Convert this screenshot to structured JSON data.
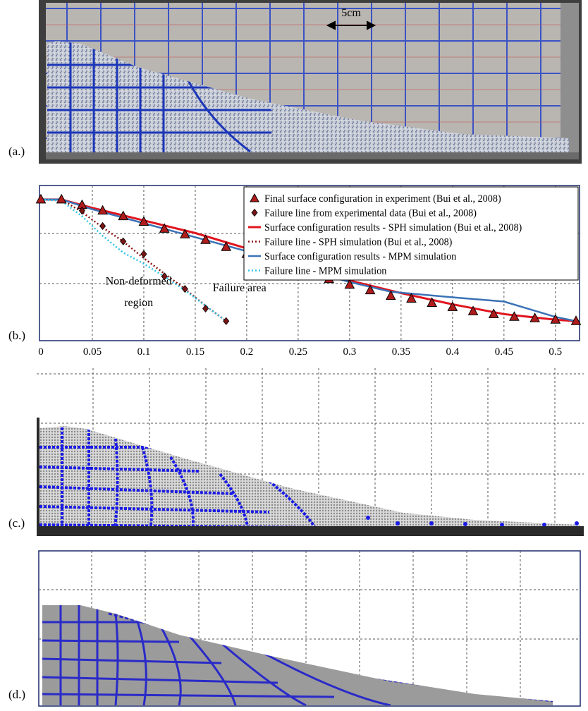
{
  "panels": {
    "a": {
      "label": "(a.)",
      "scale_label": "5cm"
    },
    "b": {
      "label": "(b.)"
    },
    "c": {
      "label": "(c.)"
    },
    "d": {
      "label": "(d.)"
    }
  },
  "colors": {
    "experiment_marker": "#b01c1c",
    "sph_line": "#e0141e",
    "mpm_line": "#3b72b5",
    "mpm_failure": "#2ec4e6",
    "particle_blue": "#1a1ae6",
    "particle_grey": "#9b9b9b",
    "frame_navy": "#1b2a6b"
  },
  "chart_data": {
    "type": "line",
    "xlim": [
      0,
      0.52
    ],
    "ylim": [
      0,
      0.11
    ],
    "xticks": [
      "0",
      "0.05",
      "0.1",
      "0.15",
      "0.2",
      "0.25",
      "0.3",
      "0.35",
      "0.4",
      "0.45",
      "0.5"
    ],
    "xtick_values": [
      0,
      0.05,
      0.1,
      0.15,
      0.2,
      0.25,
      0.3,
      0.35,
      0.4,
      0.45,
      0.5
    ],
    "grid": true,
    "legend_position": "top-right",
    "annotations": [
      {
        "text": "Non-deformed",
        "x": 0.095,
        "y": 0.0392
      },
      {
        "text": "region",
        "x": 0.095,
        "y": 0.0236
      },
      {
        "text": "Failure area",
        "x": 0.193,
        "y": 0.0344
      }
    ],
    "series": [
      {
        "name": "Final surface configuration in experiment (Bui et al., 2008)",
        "kind": "triangle",
        "x": [
          0,
          0.02,
          0.04,
          0.06,
          0.08,
          0.1,
          0.12,
          0.14,
          0.16,
          0.18,
          0.2,
          0.22,
          0.24,
          0.26,
          0.28,
          0.3,
          0.32,
          0.34,
          0.36,
          0.38,
          0.4,
          0.42,
          0.44,
          0.46,
          0.48,
          0.5,
          0.52
        ],
        "y": [
          0.1,
          0.1,
          0.096,
          0.092,
          0.088,
          0.084,
          0.079,
          0.075,
          0.071,
          0.066,
          0.061,
          0.056,
          0.051,
          0.046,
          0.043,
          0.039,
          0.035,
          0.031,
          0.029,
          0.026,
          0.023,
          0.02,
          0.018,
          0.016,
          0.015,
          0.014,
          0.013
        ]
      },
      {
        "name": "Failure line from experimental data (Bui et al., 2008)",
        "kind": "diamond",
        "x": [
          0.04,
          0.06,
          0.08,
          0.1,
          0.12,
          0.14,
          0.16,
          0.18
        ],
        "y": [
          0.092,
          0.081,
          0.07,
          0.061,
          0.045,
          0.036,
          0.022,
          0.013
        ]
      },
      {
        "name": "Surface configuration results - SPH simulation (Bui et al., 2008)",
        "kind": "solid",
        "x": [
          0,
          0.02,
          0.05,
          0.1,
          0.15,
          0.2,
          0.25,
          0.3,
          0.35,
          0.4,
          0.45,
          0.5,
          0.52
        ],
        "y": [
          0.1,
          0.1,
          0.094,
          0.085,
          0.076,
          0.065,
          0.052,
          0.042,
          0.033,
          0.025,
          0.018,
          0.014,
          0.013
        ]
      },
      {
        "name": "Failure line - SPH simulation (Bui et al., 2008)",
        "kind": "dotted",
        "x": [
          0,
          0.02,
          0.04,
          0.06,
          0.08,
          0.1,
          0.12,
          0.14,
          0.16,
          0.18
        ],
        "y": [
          0.1,
          0.1,
          0.091,
          0.08,
          0.07,
          0.058,
          0.047,
          0.036,
          0.024,
          0.013
        ]
      },
      {
        "name": "Surface configuration results - MPM simulation",
        "kind": "solid",
        "x": [
          0,
          0.02,
          0.05,
          0.1,
          0.15,
          0.2,
          0.25,
          0.3,
          0.34,
          0.4,
          0.45,
          0.5,
          0.52
        ],
        "y": [
          0.1,
          0.1,
          0.093,
          0.083,
          0.073,
          0.063,
          0.051,
          0.041,
          0.034,
          0.03,
          0.027,
          0.016,
          0.013
        ]
      },
      {
        "name": "Failure line - MPM simulation",
        "kind": "dotted",
        "x": [
          0,
          0.02,
          0.04,
          0.06,
          0.08,
          0.1,
          0.12,
          0.14,
          0.16,
          0.18
        ],
        "y": [
          0.1,
          0.099,
          0.088,
          0.074,
          0.062,
          0.054,
          0.045,
          0.035,
          0.024,
          0.013
        ]
      }
    ]
  }
}
